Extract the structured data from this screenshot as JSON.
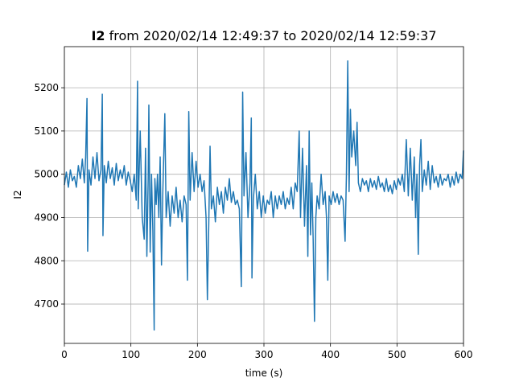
{
  "chart_data": {
    "type": "line",
    "title_name": "I2",
    "title": "from 2020/02/14 12:49:37 to 2020/02/14 12:59:37",
    "xlabel": "time (s)",
    "ylabel": "I2",
    "xlim": [
      0,
      600
    ],
    "ylim": [
      4609,
      5295
    ],
    "xticks": [
      0,
      100,
      200,
      300,
      400,
      500,
      600
    ],
    "yticks": [
      4700,
      4800,
      4900,
      5000,
      5100,
      5200
    ],
    "grid": true,
    "series": [
      {
        "color": "#1f77b4",
        "x": [
          0,
          3,
          6,
          9,
          12,
          15,
          18,
          21,
          24,
          27,
          30,
          32,
          34,
          35,
          37,
          40,
          43,
          46,
          49,
          52,
          55,
          57,
          58,
          60,
          63,
          66,
          69,
          72,
          75,
          78,
          81,
          84,
          87,
          90,
          93,
          96,
          99,
          102,
          105,
          108,
          110,
          111,
          114,
          117,
          120,
          122,
          124,
          126,
          127,
          129,
          131,
          133,
          135,
          136,
          138,
          140,
          142,
          144,
          146,
          148,
          151,
          153,
          156,
          159,
          162,
          165,
          168,
          171,
          174,
          177,
          180,
          183,
          185,
          187,
          189,
          192,
          195,
          198,
          201,
          204,
          207,
          210,
          213,
          215,
          217,
          219,
          221,
          224,
          227,
          230,
          233,
          236,
          239,
          242,
          245,
          248,
          251,
          254,
          257,
          260,
          263,
          266,
          268,
          270,
          273,
          276,
          279,
          281,
          282,
          284,
          287,
          290,
          293,
          296,
          299,
          302,
          305,
          308,
          311,
          314,
          317,
          320,
          323,
          326,
          329,
          332,
          335,
          338,
          341,
          344,
          347,
          350,
          353,
          355,
          358,
          361,
          364,
          366,
          368,
          370,
          372,
          374,
          376,
          378,
          380,
          383,
          386,
          389,
          392,
          394,
          396,
          398,
          401,
          404,
          407,
          410,
          413,
          416,
          419,
          422,
          424,
          426,
          428,
          430,
          432,
          435,
          438,
          440,
          442,
          445,
          448,
          451,
          454,
          457,
          460,
          463,
          466,
          469,
          472,
          475,
          478,
          481,
          484,
          487,
          490,
          493,
          496,
          499,
          502,
          505,
          508,
          511,
          514,
          517,
          520,
          523,
          526,
          528,
          530,
          532,
          534,
          536,
          538,
          541,
          544,
          547,
          550,
          553,
          556,
          559,
          562,
          565,
          568,
          571,
          574,
          577,
          580,
          583,
          586,
          589,
          592,
          595,
          598,
          600
        ],
        "values": [
          4975,
          5005,
          4970,
          5010,
          4985,
          4995,
          4970,
          5020,
          4990,
          5035,
          4980,
          5040,
          5175,
          4822,
          5010,
          4975,
          5040,
          4990,
          5050,
          4985,
          5010,
          5185,
          4858,
          5020,
          4980,
          5030,
          4990,
          5015,
          4975,
          5025,
          4985,
          5010,
          4990,
          5020,
          4975,
          5005,
          4985,
          4960,
          5000,
          4940,
          5215,
          4920,
          5100,
          4900,
          4850,
          5060,
          4810,
          4990,
          5160,
          4820,
          5000,
          4870,
          4640,
          4990,
          4930,
          5000,
          4900,
          5040,
          4790,
          4960,
          5140,
          4900,
          4960,
          4880,
          4950,
          4910,
          4970,
          4900,
          4940,
          4890,
          4950,
          4930,
          4755,
          5145,
          4940,
          5050,
          4960,
          5030,
          4970,
          5000,
          4960,
          4985,
          4900,
          4710,
          4880,
          5065,
          4920,
          4950,
          4890,
          4970,
          4930,
          4960,
          4910,
          4970,
          4940,
          4990,
          4935,
          4960,
          4930,
          4940,
          4920,
          4740,
          5190,
          4950,
          5050,
          4900,
          4980,
          5130,
          4760,
          4940,
          5000,
          4920,
          4960,
          4900,
          4950,
          4910,
          4940,
          4930,
          4960,
          4900,
          4950,
          4920,
          4950,
          4930,
          4960,
          4920,
          4945,
          4930,
          4970,
          4920,
          4980,
          4960,
          5100,
          4900,
          5060,
          4880,
          5020,
          4810,
          5100,
          4860,
          4980,
          4850,
          4660,
          4900,
          4950,
          4920,
          5000,
          4930,
          4960,
          4900,
          4755,
          4950,
          4930,
          4960,
          4935,
          4955,
          4930,
          4950,
          4940,
          4845,
          5000,
          5262,
          4960,
          5150,
          5040,
          5100,
          5020,
          5120,
          4980,
          4960,
          4990,
          4975,
          4985,
          4960,
          4990,
          4970,
          4985,
          4965,
          4995,
          4970,
          4980,
          4960,
          4990,
          4960,
          4975,
          4955,
          4985,
          4965,
          4990,
          4975,
          5000,
          4960,
          5080,
          4950,
          5060,
          4940,
          5040,
          4900,
          5000,
          4815,
          5020,
          5080,
          4960,
          5010,
          4975,
          5030,
          4965,
          5020,
          4980,
          4995,
          4970,
          5000,
          4975,
          4990,
          4985,
          5000,
          4970,
          4995,
          4975,
          5005,
          4980,
          5000,
          4990,
          5055
        ]
      }
    ]
  }
}
